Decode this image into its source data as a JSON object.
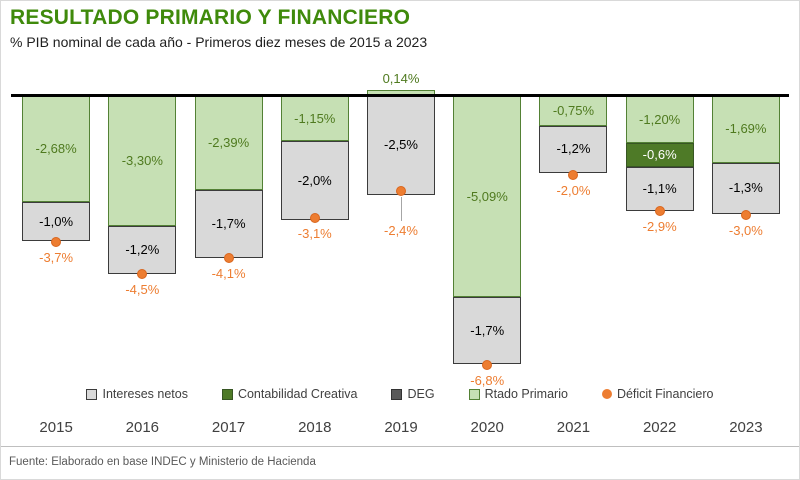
{
  "header": {
    "title": "RESULTADO PRIMARIO Y FINANCIERO",
    "subtitle": "% PIB nominal de cada año - Primeros diez meses de 2015 a 2023"
  },
  "footer": {
    "source": "Fuente: Elaborado en base INDEC y Ministerio de Hacienda"
  },
  "legend": [
    {
      "label": "Intereses netos",
      "swatch": "gray-box"
    },
    {
      "label": "Contabilidad Creativa",
      "swatch": "darkgreen-box"
    },
    {
      "label": "DEG",
      "swatch": "darkgray-box"
    },
    {
      "label": "Rtado Primario",
      "swatch": "lightgreen-box"
    },
    {
      "label": "Déficit Financiero",
      "swatch": "orange-dot"
    }
  ],
  "colors": {
    "title_green": "#3f8a0b",
    "bar_light_green": "#C6E0B4",
    "bar_green_border": "#538135",
    "bar_dark_green": "#4E7A27",
    "bar_gray": "#D9D9D9",
    "bar_gray_border": "#3B3B3B",
    "deficit_orange": "#ED7D31",
    "label_green_text": "#4F7A1F"
  },
  "chart_data": {
    "type": "bar",
    "stacked": true,
    "unit": "% PIB nominal",
    "title": "RESULTADO PRIMARIO Y FINANCIERO",
    "subtitle": "% PIB nominal de cada año - Primeros diez meses de 2015 a 2023",
    "categories": [
      "2015",
      "2016",
      "2017",
      "2018",
      "2019",
      "2020",
      "2021",
      "2022",
      "2023"
    ],
    "series": [
      {
        "name": "Rtado Primario",
        "values": [
          -2.68,
          -3.3,
          -2.39,
          -1.15,
          0.14,
          -5.09,
          -0.75,
          -1.2,
          -1.69
        ]
      },
      {
        "name": "Contabilidad Creativa",
        "values": [
          null,
          null,
          null,
          null,
          null,
          null,
          null,
          -0.6,
          null
        ]
      },
      {
        "name": "Intereses netos",
        "values": [
          -1.0,
          -1.2,
          -1.7,
          -2.0,
          -2.5,
          -1.7,
          -1.2,
          -1.1,
          -1.3
        ]
      },
      {
        "name": "Déficit Financiero",
        "values": [
          -3.7,
          -4.5,
          -4.1,
          -3.1,
          -2.4,
          -6.8,
          -2.0,
          -2.9,
          -3.0
        ]
      }
    ],
    "labels": {
      "rtado_primario": [
        "-2,68%",
        "-3,30%",
        "-2,39%",
        "-1,15%",
        "0,14%",
        "-5,09%",
        "-0,75%",
        "-1,20%",
        "-1,69%"
      ],
      "contabilidad_creativa": [
        null,
        null,
        null,
        null,
        null,
        null,
        null,
        "-0,6%",
        null
      ],
      "intereses_netos": [
        "-1,0%",
        "-1,2%",
        "-1,7%",
        "-2,0%",
        "-2,5%",
        "-1,7%",
        "-1,2%",
        "-1,1%",
        "-1,3%"
      ],
      "deficit_financiero": [
        "-3,7%",
        "-4,5%",
        "-4,1%",
        "-3,1%",
        "-2,4%",
        "-6,8%",
        "-2,0%",
        "-2,9%",
        "-3,0%"
      ]
    },
    "ylim": [
      -7.5,
      0.9
    ],
    "grid": false,
    "legend_position": "bottom"
  }
}
